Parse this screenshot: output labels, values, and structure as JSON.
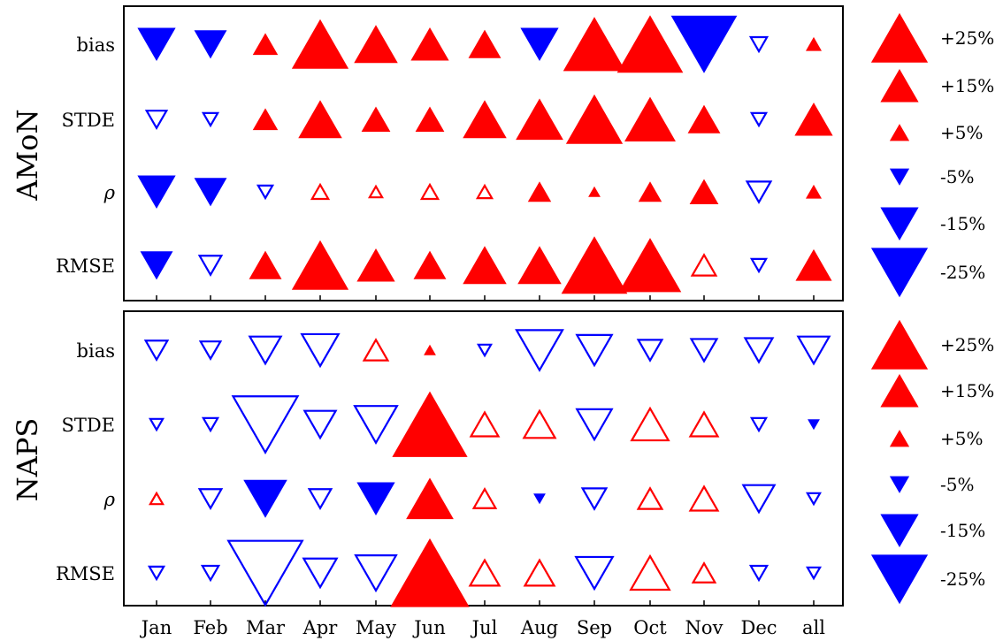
{
  "chart_data": [
    {
      "type": "scatter",
      "panel": "AMoN",
      "title": "AMoN",
      "categories": [
        "Jan",
        "Feb",
        "Mar",
        "Apr",
        "May",
        "Jun",
        "Jul",
        "Aug",
        "Sep",
        "Oct",
        "Nov",
        "Dec",
        "all"
      ],
      "rows": [
        "bias",
        "STDE",
        "ρ",
        "RMSE"
      ],
      "values": [
        [
          -15,
          -12,
          8,
          25,
          18,
          15,
          12,
          -15,
          28,
          30,
          -30,
          -4,
          3
        ],
        [
          -6,
          -3,
          8,
          18,
          10,
          10,
          18,
          20,
          25,
          22,
          12,
          -3,
          15
        ],
        [
          -15,
          -12,
          -3,
          4,
          2,
          4,
          3,
          7,
          1,
          7,
          10,
          -8,
          3
        ],
        [
          -12,
          -7,
          12,
          25,
          15,
          12,
          18,
          18,
          30,
          28,
          8,
          -3,
          14
        ]
      ],
      "filled": [
        [
          true,
          true,
          true,
          true,
          true,
          true,
          true,
          true,
          true,
          true,
          true,
          false,
          true
        ],
        [
          false,
          false,
          true,
          true,
          true,
          true,
          true,
          true,
          true,
          true,
          true,
          false,
          true
        ],
        [
          true,
          true,
          false,
          false,
          false,
          false,
          false,
          true,
          true,
          true,
          true,
          false,
          true
        ],
        [
          true,
          false,
          true,
          true,
          true,
          true,
          true,
          true,
          true,
          true,
          false,
          false,
          true
        ]
      ]
    },
    {
      "type": "scatter",
      "panel": "NAPS",
      "title": "NAPS",
      "categories": [
        "Jan",
        "Feb",
        "Mar",
        "Apr",
        "May",
        "Jun",
        "Jul",
        "Aug",
        "Sep",
        "Oct",
        "Nov",
        "Dec",
        "all"
      ],
      "rows": [
        "bias",
        "STDE",
        "ρ",
        "RMSE"
      ],
      "values": [
        [
          -7,
          -6,
          -12,
          -15,
          8,
          1,
          -2,
          -20,
          -14,
          -8,
          -9,
          -10,
          -12
        ],
        [
          -2,
          -3,
          -30,
          -12,
          -18,
          35,
          10,
          12,
          -14,
          15,
          10,
          -3,
          -1
        ],
        [
          2,
          -7,
          -18,
          -7,
          -15,
          20,
          7,
          -1,
          -8,
          8,
          10,
          -12,
          -2
        ],
        [
          -3,
          -4,
          -35,
          -13,
          -17,
          37,
          11,
          11,
          -15,
          16,
          7,
          -4,
          -2
        ]
      ],
      "filled": [
        [
          false,
          false,
          false,
          false,
          false,
          true,
          false,
          false,
          false,
          false,
          false,
          false,
          false
        ],
        [
          false,
          false,
          false,
          false,
          false,
          true,
          false,
          false,
          false,
          false,
          false,
          false,
          true
        ],
        [
          false,
          false,
          true,
          false,
          true,
          true,
          false,
          true,
          false,
          false,
          false,
          false,
          false
        ],
        [
          false,
          false,
          false,
          false,
          false,
          true,
          false,
          false,
          false,
          false,
          false,
          false,
          false
        ]
      ]
    }
  ],
  "legend": {
    "entries": [
      {
        "label": "+25%",
        "value": 25
      },
      {
        "label": "+15%",
        "value": 15
      },
      {
        "label": "+5%",
        "value": 5
      },
      {
        "label": "-5%",
        "value": -5
      },
      {
        "label": "-15%",
        "value": -15
      },
      {
        "label": "-25%",
        "value": -25
      }
    ]
  },
  "colors": {
    "positive": "#ff0000",
    "negative": "#0000ff",
    "frame": "#000000"
  }
}
